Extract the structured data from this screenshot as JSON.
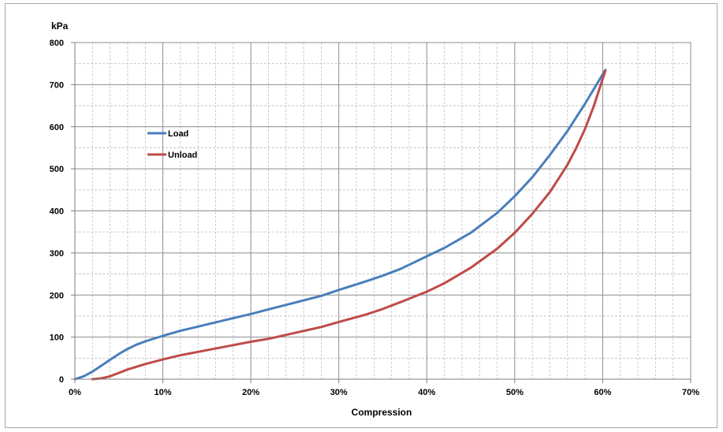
{
  "chart_data": {
    "type": "line",
    "title": "",
    "xlabel": "Compression",
    "ylabel": "kPa",
    "xlim": [
      0,
      70
    ],
    "ylim": [
      0,
      800
    ],
    "x_ticks": [
      "0%",
      "10%",
      "20%",
      "30%",
      "40%",
      "50%",
      "60%",
      "70%"
    ],
    "y_ticks": [
      "0",
      "100",
      "200",
      "300",
      "400",
      "500",
      "600",
      "700",
      "800"
    ],
    "grid": true,
    "legend_position": "upper-left inside",
    "series": [
      {
        "name": "Load",
        "color": "#4a7ebb",
        "x": [
          0,
          1,
          2,
          3,
          4,
          5,
          6,
          7,
          8,
          10,
          12,
          15,
          18,
          20,
          22,
          25,
          28,
          30,
          33,
          35,
          37,
          40,
          42,
          45,
          48,
          50,
          52,
          54,
          56,
          58,
          60.3
        ],
        "y": [
          0,
          7,
          18,
          32,
          46,
          60,
          72,
          82,
          90,
          103,
          115,
          130,
          145,
          155,
          166,
          182,
          198,
          212,
          232,
          246,
          262,
          292,
          312,
          348,
          395,
          435,
          480,
          533,
          590,
          655,
          735
        ]
      },
      {
        "name": "Unload",
        "color": "#be4b48",
        "x": [
          2,
          3,
          4,
          5,
          6,
          8,
          10,
          12,
          15,
          18,
          20,
          22,
          25,
          28,
          30,
          33,
          35,
          37,
          40,
          42,
          45,
          48,
          50,
          52,
          54,
          55,
          56,
          57,
          58,
          59,
          60.3
        ],
        "y": [
          0,
          2,
          7,
          15,
          23,
          36,
          47,
          57,
          69,
          81,
          89,
          96,
          110,
          124,
          136,
          153,
          167,
          183,
          208,
          228,
          265,
          310,
          348,
          393,
          445,
          477,
          510,
          550,
          595,
          650,
          733
        ]
      }
    ]
  }
}
